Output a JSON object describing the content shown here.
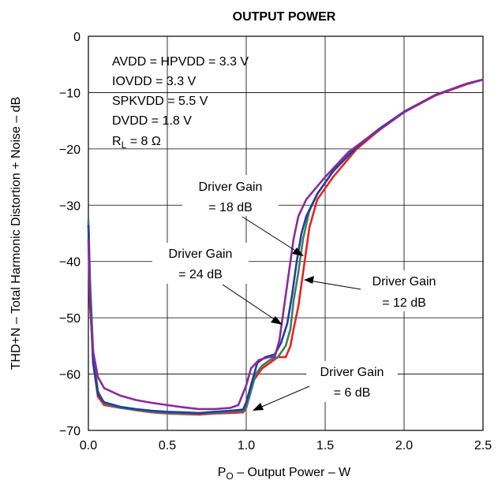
{
  "chart_data": {
    "type": "line",
    "title": "OUTPUT POWER",
    "xlabel": {
      "main": "P",
      "sub": "O",
      "rest": " – Output Power – W"
    },
    "ylabel": "THD+N – Total Harmonic Distortion + Noise – dB",
    "xlim": [
      0,
      2.5
    ],
    "ylim": [
      -70,
      0
    ],
    "xticks": [
      0,
      0.5,
      1.0,
      1.5,
      2.0,
      2.5
    ],
    "xtick_labels": [
      "0.0",
      "0.5",
      "1.0",
      "1.5",
      "2.0",
      "2.5"
    ],
    "yticks": [
      0,
      -10,
      -20,
      -30,
      -40,
      -50,
      -60,
      -70
    ],
    "ytick_labels": [
      "0",
      "−10",
      "−20",
      "−30",
      "−40",
      "−50",
      "−60",
      "−70"
    ],
    "grid": true,
    "conditions": [
      {
        "text": "AVDD = HPVDD = 3.3 V"
      },
      {
        "text": "IOVDD = 3.3 V"
      },
      {
        "text": "SPKVDD = 5.5 V"
      },
      {
        "text": "DVDD = 1.8 V"
      },
      {
        "main": "R",
        "sub": "L",
        "rest": "  = 8 Ω"
      }
    ],
    "annotations": [
      {
        "line1": "Driver Gain",
        "line2": "= 18 dB",
        "series": "18 dB"
      },
      {
        "line1": "Driver Gain",
        "line2": "= 24 dB",
        "series": "24 dB"
      },
      {
        "line1": "Driver Gain",
        "line2": "= 12 dB",
        "series": "12 dB"
      },
      {
        "line1": "Driver Gain",
        "line2": "= 6 dB",
        "series": "6 dB"
      }
    ],
    "series": [
      {
        "name": "6 dB",
        "color": "#e8231f",
        "points": [
          [
            0.0,
            -33
          ],
          [
            0.01,
            -45
          ],
          [
            0.03,
            -58
          ],
          [
            0.06,
            -64
          ],
          [
            0.1,
            -65.5
          ],
          [
            0.2,
            -66
          ],
          [
            0.3,
            -66.4
          ],
          [
            0.4,
            -66.8
          ],
          [
            0.5,
            -67
          ],
          [
            0.6,
            -67.1
          ],
          [
            0.7,
            -67.2
          ],
          [
            0.8,
            -67
          ],
          [
            0.9,
            -66.9
          ],
          [
            0.98,
            -66.8
          ],
          [
            1.0,
            -66
          ],
          [
            1.05,
            -61
          ],
          [
            1.1,
            -59
          ],
          [
            1.15,
            -58
          ],
          [
            1.2,
            -57
          ],
          [
            1.25,
            -57
          ],
          [
            1.28,
            -55
          ],
          [
            1.3,
            -52
          ],
          [
            1.33,
            -48
          ],
          [
            1.36,
            -42
          ],
          [
            1.38,
            -38
          ],
          [
            1.4,
            -34
          ],
          [
            1.45,
            -29
          ],
          [
            1.55,
            -25
          ],
          [
            1.7,
            -20
          ],
          [
            1.85,
            -16.5
          ],
          [
            2.0,
            -13.5
          ],
          [
            2.2,
            -10.5
          ],
          [
            2.4,
            -8.5
          ],
          [
            2.5,
            -7.7
          ]
        ]
      },
      {
        "name": "12 dB",
        "color": "#3f7f5f",
        "points": [
          [
            0.0,
            -32.5
          ],
          [
            0.01,
            -43
          ],
          [
            0.03,
            -56
          ],
          [
            0.06,
            -63
          ],
          [
            0.1,
            -65.2
          ],
          [
            0.2,
            -66
          ],
          [
            0.3,
            -66.3
          ],
          [
            0.4,
            -66.7
          ],
          [
            0.5,
            -66.9
          ],
          [
            0.6,
            -67
          ],
          [
            0.7,
            -67
          ],
          [
            0.8,
            -66.9
          ],
          [
            0.9,
            -66.7
          ],
          [
            0.99,
            -66.5
          ],
          [
            1.02,
            -64
          ],
          [
            1.06,
            -60
          ],
          [
            1.1,
            -58.5
          ],
          [
            1.15,
            -57.5
          ],
          [
            1.2,
            -57
          ],
          [
            1.25,
            -55
          ],
          [
            1.28,
            -52
          ],
          [
            1.3,
            -47
          ],
          [
            1.33,
            -42
          ],
          [
            1.36,
            -36
          ],
          [
            1.4,
            -31
          ],
          [
            1.45,
            -28
          ],
          [
            1.55,
            -24
          ],
          [
            1.7,
            -19.5
          ],
          [
            1.85,
            -16.3
          ],
          [
            2.0,
            -13.4
          ],
          [
            2.2,
            -10.4
          ],
          [
            2.4,
            -8.4
          ],
          [
            2.5,
            -7.7
          ]
        ]
      },
      {
        "name": "18 dB",
        "color": "#1f3fa0",
        "points": [
          [
            0.0,
            -33.5
          ],
          [
            0.01,
            -46
          ],
          [
            0.03,
            -58
          ],
          [
            0.06,
            -63.5
          ],
          [
            0.1,
            -65
          ],
          [
            0.2,
            -65.8
          ],
          [
            0.3,
            -66.2
          ],
          [
            0.4,
            -66.5
          ],
          [
            0.5,
            -66.7
          ],
          [
            0.6,
            -66.8
          ],
          [
            0.7,
            -66.9
          ],
          [
            0.8,
            -66.7
          ],
          [
            0.9,
            -66.5
          ],
          [
            0.98,
            -66.3
          ],
          [
            1.0,
            -65
          ],
          [
            1.03,
            -62
          ],
          [
            1.07,
            -58
          ],
          [
            1.12,
            -57
          ],
          [
            1.18,
            -56.5
          ],
          [
            1.22,
            -54.5
          ],
          [
            1.26,
            -51
          ],
          [
            1.29,
            -46
          ],
          [
            1.32,
            -40
          ],
          [
            1.35,
            -35
          ],
          [
            1.38,
            -32
          ],
          [
            1.45,
            -28
          ],
          [
            1.55,
            -24
          ],
          [
            1.7,
            -19.7
          ],
          [
            1.85,
            -16.3
          ],
          [
            2.0,
            -13.4
          ],
          [
            2.2,
            -10.4
          ],
          [
            2.4,
            -8.4
          ],
          [
            2.5,
            -7.7
          ]
        ]
      },
      {
        "name": "24 dB",
        "color": "#8b2a9a",
        "points": [
          [
            0.0,
            -36
          ],
          [
            0.01,
            -48
          ],
          [
            0.03,
            -56
          ],
          [
            0.06,
            -60.5
          ],
          [
            0.1,
            -62.5
          ],
          [
            0.2,
            -63.8
          ],
          [
            0.3,
            -64.6
          ],
          [
            0.4,
            -65.1
          ],
          [
            0.5,
            -65.5
          ],
          [
            0.6,
            -65.9
          ],
          [
            0.7,
            -66.2
          ],
          [
            0.8,
            -66.2
          ],
          [
            0.9,
            -66
          ],
          [
            0.95,
            -65.5
          ],
          [
            1.0,
            -62
          ],
          [
            1.03,
            -59
          ],
          [
            1.08,
            -57.5
          ],
          [
            1.14,
            -57
          ],
          [
            1.18,
            -57
          ],
          [
            1.21,
            -54
          ],
          [
            1.24,
            -48
          ],
          [
            1.27,
            -42
          ],
          [
            1.3,
            -36
          ],
          [
            1.33,
            -32
          ],
          [
            1.38,
            -29
          ],
          [
            1.5,
            -25
          ],
          [
            1.65,
            -20.5
          ],
          [
            1.85,
            -16.5
          ],
          [
            2.0,
            -13.5
          ],
          [
            2.2,
            -10.4
          ],
          [
            2.4,
            -8.4
          ],
          [
            2.5,
            -7.7
          ]
        ]
      }
    ]
  }
}
